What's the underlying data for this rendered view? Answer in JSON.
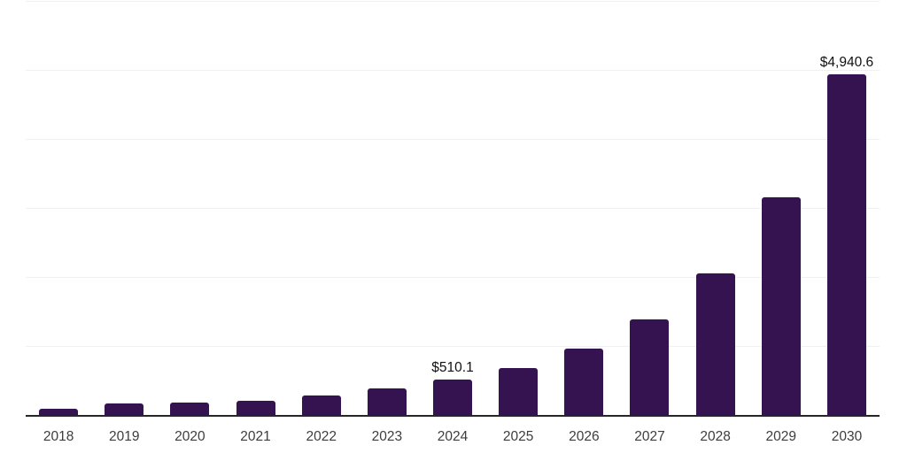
{
  "chart_data": {
    "type": "bar",
    "title": "",
    "xlabel": "",
    "ylabel": "",
    "categories": [
      "2018",
      "2019",
      "2020",
      "2021",
      "2022",
      "2023",
      "2024",
      "2025",
      "2026",
      "2027",
      "2028",
      "2029",
      "2030"
    ],
    "values": [
      90,
      170,
      185,
      210,
      280,
      385,
      510.1,
      680,
      960,
      1390,
      2055,
      3150,
      4940.6
    ],
    "data_labels": {
      "2024": "$510.1",
      "2030": "$4,940.6"
    },
    "ylim": [
      0,
      6000
    ],
    "gridline_step": 1000,
    "grid": true,
    "legend": false,
    "y_axis_ticks_visible": false
  },
  "colors": {
    "bar": "#341350",
    "gridline": "#f0f0f2",
    "axis_line": "#262626",
    "tick_label": "#3d3d3d",
    "value_label": "#111111",
    "background": "#ffffff"
  }
}
